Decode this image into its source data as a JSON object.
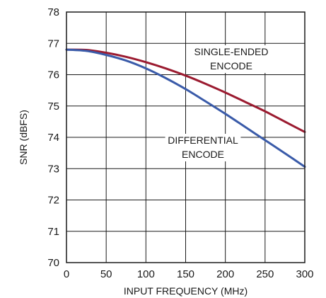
{
  "chart_data": {
    "type": "line",
    "title": "",
    "xlabel": "INPUT FREQUENCY (MHz)",
    "ylabel": "SNR (dBFS)",
    "xlim": [
      0,
      300
    ],
    "ylim": [
      70,
      78
    ],
    "xticks": [
      0,
      50,
      100,
      150,
      200,
      250,
      300
    ],
    "yticks": [
      70,
      71,
      72,
      73,
      74,
      75,
      76,
      77,
      78
    ],
    "grid": true,
    "legend": "none",
    "series": [
      {
        "name": "SINGLE-ENDED ENCODE",
        "color": "#9b1b30",
        "label_lines": [
          "SINGLE-ENDED",
          "ENCODE"
        ],
        "x": [
          0,
          25,
          50,
          75,
          100,
          125,
          150,
          175,
          200,
          225,
          250,
          275,
          300
        ],
        "y": [
          76.8,
          76.79,
          76.7,
          76.57,
          76.4,
          76.2,
          75.97,
          75.71,
          75.43,
          75.13,
          74.83,
          74.5,
          74.17
        ]
      },
      {
        "name": "DIFFERENTIAL ENCODE",
        "color": "#3a5ba9",
        "label_lines": [
          "DIFFERENTIAL",
          "ENCODE"
        ],
        "x": [
          0,
          25,
          50,
          75,
          100,
          125,
          150,
          175,
          200,
          225,
          250,
          275,
          300
        ],
        "y": [
          76.8,
          76.76,
          76.63,
          76.45,
          76.2,
          75.89,
          75.54,
          75.15,
          74.75,
          74.33,
          73.91,
          73.49,
          73.06
        ]
      }
    ]
  }
}
